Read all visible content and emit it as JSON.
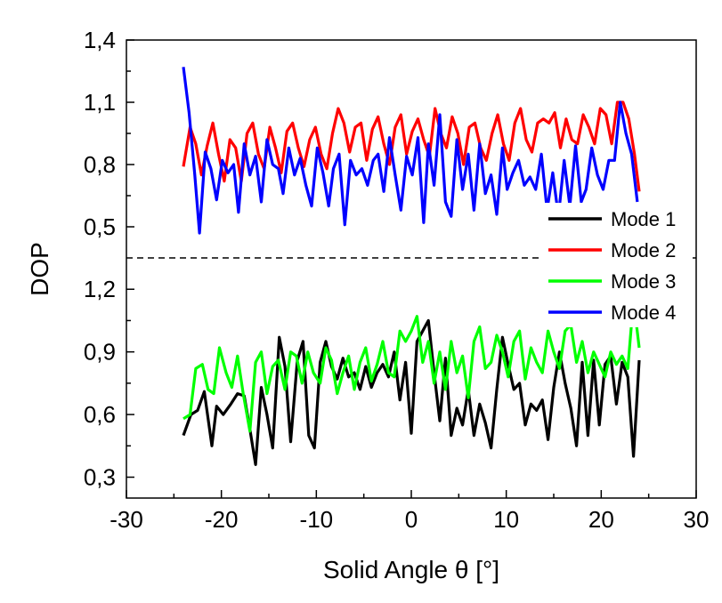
{
  "chart_data": {
    "type": "line",
    "xlabel": "Solid Angle θ [°]",
    "ylabel": "DOP",
    "xlim": [
      -30,
      30
    ],
    "x_ticks": [
      "-30",
      "-20",
      "-10",
      "0",
      "10",
      "20",
      "30"
    ],
    "upper_panel": {
      "ylim": [
        0.35,
        1.4
      ],
      "y_ticks": [
        "0,5",
        "0,8",
        "1,1",
        "1,4"
      ],
      "y_tick_values": [
        0.5,
        0.8,
        1.1,
        1.4
      ]
    },
    "lower_panel": {
      "ylim": [
        0.2,
        1.35
      ],
      "y_ticks": [
        "0,3",
        "0,6",
        "0,9",
        "1,2"
      ],
      "y_tick_values": [
        0.3,
        0.6,
        0.9,
        1.2
      ]
    },
    "separator": "dashed",
    "legend_position": "right",
    "grid": false,
    "series": [
      {
        "name": "Mode 1",
        "panel": "lower",
        "color": "#000000",
        "x": [
          -24.0,
          -23.2,
          -22.5,
          -21.8,
          -21.0,
          -20.5,
          -19.8,
          -19.0,
          -18.3,
          -17.6,
          -17.0,
          -16.4,
          -15.8,
          -15.2,
          -14.6,
          -13.9,
          -13.3,
          -12.7,
          -12.0,
          -11.4,
          -10.8,
          -10.2,
          -9.6,
          -9.0,
          -8.4,
          -7.8,
          -7.2,
          -6.6,
          -6.0,
          -5.4,
          -4.8,
          -4.2,
          -3.6,
          -3.0,
          -2.4,
          -1.8,
          -1.2,
          -0.6,
          0.0,
          0.6,
          1.2,
          1.8,
          2.4,
          3.0,
          3.6,
          4.2,
          4.8,
          5.4,
          6.0,
          6.6,
          7.2,
          7.8,
          8.4,
          9.0,
          9.6,
          10.2,
          10.8,
          11.4,
          12.0,
          12.6,
          13.2,
          13.8,
          14.4,
          15.0,
          15.6,
          16.2,
          16.8,
          17.4,
          18.0,
          18.6,
          19.2,
          19.8,
          20.4,
          21.0,
          21.6,
          22.2,
          22.8,
          23.4,
          24.0
        ],
        "y": [
          0.5,
          0.6,
          0.62,
          0.71,
          0.45,
          0.64,
          0.6,
          0.65,
          0.7,
          0.69,
          0.53,
          0.36,
          0.73,
          0.6,
          0.44,
          0.97,
          0.83,
          0.47,
          0.86,
          0.95,
          0.5,
          0.44,
          0.85,
          0.95,
          0.83,
          0.77,
          0.87,
          0.78,
          0.8,
          0.72,
          0.83,
          0.73,
          0.8,
          0.84,
          0.78,
          0.9,
          0.67,
          0.85,
          0.51,
          0.95,
          1.0,
          1.05,
          0.8,
          0.57,
          0.87,
          0.5,
          0.63,
          0.55,
          0.72,
          0.5,
          0.65,
          0.56,
          0.44,
          0.72,
          0.97,
          0.84,
          0.72,
          0.75,
          0.55,
          0.65,
          0.62,
          0.67,
          0.48,
          0.73,
          0.9,
          0.75,
          0.63,
          0.45,
          0.85,
          0.5,
          0.86,
          0.55,
          0.84,
          0.88,
          0.65,
          0.85,
          0.78,
          0.4,
          0.86
        ]
      },
      {
        "name": "Mode 2",
        "panel": "upper",
        "color": "#ff0000",
        "x": [
          -24.0,
          -23.3,
          -22.7,
          -22.1,
          -21.5,
          -20.9,
          -20.3,
          -19.7,
          -19.1,
          -18.5,
          -17.9,
          -17.3,
          -16.7,
          -16.1,
          -15.5,
          -14.9,
          -14.3,
          -13.7,
          -13.1,
          -12.5,
          -11.9,
          -11.3,
          -10.7,
          -10.1,
          -9.5,
          -8.9,
          -8.3,
          -7.7,
          -7.1,
          -6.5,
          -5.9,
          -5.3,
          -4.7,
          -4.1,
          -3.5,
          -2.9,
          -2.3,
          -1.7,
          -1.1,
          -0.5,
          0.1,
          0.7,
          1.3,
          1.9,
          2.5,
          3.1,
          3.7,
          4.3,
          4.9,
          5.5,
          6.1,
          6.7,
          7.3,
          7.9,
          8.5,
          9.1,
          9.7,
          10.3,
          10.9,
          11.5,
          12.1,
          12.7,
          13.3,
          13.9,
          14.5,
          15.1,
          15.7,
          16.3,
          16.9,
          17.5,
          18.1,
          18.7,
          19.3,
          19.9,
          20.5,
          21.1,
          21.7,
          22.3,
          22.9,
          23.5,
          24.0
        ],
        "y": [
          0.79,
          0.98,
          0.9,
          0.75,
          0.89,
          1.0,
          0.85,
          0.72,
          0.92,
          0.88,
          0.72,
          0.95,
          1.0,
          0.85,
          0.78,
          0.98,
          0.88,
          0.76,
          0.96,
          1.0,
          0.88,
          0.79,
          0.92,
          0.98,
          0.85,
          0.78,
          0.95,
          1.07,
          1.0,
          0.86,
          0.98,
          1.0,
          0.82,
          0.97,
          1.03,
          0.9,
          0.8,
          0.98,
          1.04,
          0.85,
          0.96,
          1.02,
          0.92,
          0.84,
          1.07,
          0.95,
          0.88,
          1.03,
          0.95,
          0.8,
          0.98,
          1.0,
          0.88,
          0.82,
          0.95,
          1.04,
          0.9,
          0.82,
          1.0,
          1.07,
          0.92,
          0.86,
          1.0,
          1.02,
          1.0,
          1.05,
          0.88,
          1.02,
          0.92,
          0.9,
          1.04,
          0.98,
          0.9,
          1.07,
          1.04,
          0.9,
          1.1,
          1.1,
          1.02,
          0.85,
          0.67
        ]
      },
      {
        "name": "Mode 3",
        "panel": "lower",
        "color": "#00ff00",
        "x": [
          -24.0,
          -23.3,
          -22.7,
          -22.0,
          -21.4,
          -20.8,
          -20.2,
          -19.5,
          -18.9,
          -18.3,
          -17.7,
          -17.0,
          -16.4,
          -15.8,
          -15.2,
          -14.6,
          -14.0,
          -13.3,
          -12.7,
          -12.1,
          -11.5,
          -10.9,
          -10.3,
          -9.6,
          -9.0,
          -8.4,
          -7.8,
          -7.2,
          -6.6,
          -6.0,
          -5.4,
          -4.8,
          -4.2,
          -3.6,
          -3.0,
          -2.4,
          -1.8,
          -1.2,
          -0.6,
          0.0,
          0.6,
          1.2,
          1.8,
          2.4,
          3.0,
          3.6,
          4.2,
          4.8,
          5.4,
          6.0,
          6.6,
          7.2,
          7.8,
          8.4,
          9.0,
          9.6,
          10.2,
          10.8,
          11.4,
          12.0,
          12.6,
          13.2,
          13.8,
          14.4,
          15.0,
          15.6,
          16.2,
          16.8,
          17.4,
          18.0,
          18.6,
          19.2,
          19.8,
          20.4,
          21.0,
          21.6,
          22.2,
          22.8,
          23.4,
          24.0
        ],
        "y": [
          0.58,
          0.6,
          0.82,
          0.84,
          0.72,
          0.7,
          0.92,
          0.8,
          0.73,
          0.88,
          0.7,
          0.52,
          0.85,
          0.9,
          0.7,
          0.83,
          0.86,
          0.72,
          0.9,
          0.88,
          0.75,
          0.9,
          0.8,
          0.75,
          0.92,
          0.86,
          0.7,
          0.8,
          0.88,
          0.72,
          0.85,
          0.92,
          0.76,
          0.84,
          0.95,
          0.8,
          0.78,
          1.0,
          0.95,
          1.0,
          1.07,
          0.85,
          0.95,
          0.75,
          0.9,
          0.72,
          0.95,
          0.8,
          0.88,
          0.68,
          0.95,
          1.02,
          0.82,
          0.85,
          0.98,
          0.9,
          0.78,
          0.95,
          1.0,
          0.77,
          0.92,
          0.85,
          0.8,
          1.0,
          0.9,
          0.82,
          1.0,
          1.03,
          0.85,
          0.95,
          0.8,
          0.9,
          0.84,
          0.78,
          0.9,
          0.84,
          0.88,
          0.82,
          1.15,
          0.92
        ]
      },
      {
        "name": "Mode 4",
        "panel": "upper",
        "color": "#0000ff",
        "x": [
          -24.0,
          -23.4,
          -22.8,
          -22.3,
          -21.7,
          -21.1,
          -20.5,
          -19.9,
          -19.3,
          -18.7,
          -18.2,
          -17.6,
          -17.0,
          -16.4,
          -15.8,
          -15.2,
          -14.6,
          -14.0,
          -13.5,
          -12.9,
          -12.3,
          -11.7,
          -11.1,
          -10.5,
          -9.9,
          -9.3,
          -8.7,
          -8.2,
          -7.6,
          -7.0,
          -6.4,
          -5.8,
          -5.2,
          -4.6,
          -4.0,
          -3.5,
          -2.9,
          -2.3,
          -1.7,
          -1.1,
          -0.5,
          0.1,
          0.7,
          1.3,
          1.8,
          2.4,
          3.0,
          3.6,
          4.2,
          4.8,
          5.4,
          6.0,
          6.6,
          7.2,
          7.8,
          8.4,
          9.0,
          9.6,
          10.1,
          10.7,
          11.3,
          11.9,
          12.5,
          13.1,
          13.7,
          14.3,
          14.9,
          15.5,
          16.1,
          16.7,
          17.3,
          17.9,
          18.4,
          19.0,
          19.6,
          20.2,
          20.8,
          21.4,
          22.0,
          22.6,
          23.2,
          23.8
        ],
        "y": [
          1.27,
          1.05,
          0.75,
          0.47,
          0.86,
          0.78,
          0.63,
          0.82,
          0.76,
          0.8,
          0.57,
          0.9,
          0.75,
          0.84,
          0.62,
          0.92,
          0.8,
          0.78,
          0.66,
          0.88,
          0.75,
          0.83,
          0.7,
          0.6,
          0.88,
          0.76,
          0.6,
          0.78,
          0.85,
          0.51,
          0.82,
          0.75,
          0.78,
          0.7,
          0.82,
          0.85,
          0.67,
          0.93,
          0.75,
          0.58,
          0.84,
          0.75,
          0.93,
          0.52,
          0.9,
          0.7,
          1.04,
          0.62,
          0.55,
          0.92,
          0.68,
          0.85,
          0.58,
          0.9,
          0.66,
          0.75,
          0.56,
          0.88,
          0.68,
          0.76,
          0.82,
          0.7,
          0.74,
          0.68,
          0.85,
          0.58,
          0.76,
          0.55,
          0.82,
          0.6,
          0.89,
          0.62,
          0.68,
          0.88,
          0.75,
          0.68,
          0.82,
          0.82,
          1.1,
          0.95,
          0.85,
          0.62
        ]
      }
    ]
  }
}
